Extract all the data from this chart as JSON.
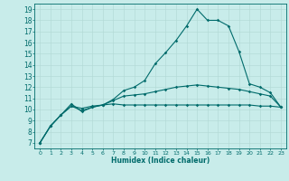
{
  "xlabel": "Humidex (Indice chaleur)",
  "bg_color": "#c8ecea",
  "grid_color": "#b0d8d4",
  "line_color": "#006b6b",
  "xlim": [
    -0.5,
    23.5
  ],
  "ylim": [
    6.5,
    19.5
  ],
  "xticks": [
    0,
    1,
    2,
    3,
    4,
    5,
    6,
    7,
    8,
    9,
    10,
    11,
    12,
    13,
    14,
    15,
    16,
    17,
    18,
    19,
    20,
    21,
    22,
    23
  ],
  "yticks": [
    7,
    8,
    9,
    10,
    11,
    12,
    13,
    14,
    15,
    16,
    17,
    18,
    19
  ],
  "line1_x": [
    0,
    1,
    2,
    3,
    4,
    5,
    6,
    7,
    8,
    9,
    10,
    11,
    12,
    13,
    14,
    15,
    16,
    17,
    18,
    19,
    20,
    21,
    22,
    23
  ],
  "line1_y": [
    7.0,
    8.5,
    9.5,
    10.3,
    10.1,
    10.3,
    10.4,
    10.5,
    10.4,
    10.4,
    10.4,
    10.4,
    10.4,
    10.4,
    10.4,
    10.4,
    10.4,
    10.4,
    10.4,
    10.4,
    10.4,
    10.3,
    10.3,
    10.2
  ],
  "line2_x": [
    0,
    1,
    2,
    3,
    4,
    5,
    6,
    7,
    8,
    9,
    10,
    11,
    12,
    13,
    14,
    15,
    16,
    17,
    18,
    19,
    20,
    21,
    22,
    23
  ],
  "line2_y": [
    7.0,
    8.5,
    9.5,
    10.3,
    9.9,
    10.2,
    10.4,
    10.8,
    11.2,
    11.3,
    11.4,
    11.6,
    11.8,
    12.0,
    12.1,
    12.2,
    12.1,
    12.0,
    11.9,
    11.8,
    11.6,
    11.4,
    11.2,
    10.2
  ],
  "line3_x": [
    0,
    1,
    2,
    3,
    4,
    5,
    6,
    7,
    8,
    9,
    10,
    11,
    12,
    13,
    14,
    15,
    16,
    17,
    18,
    19,
    20,
    21,
    22,
    23
  ],
  "line3_y": [
    7.0,
    8.5,
    9.5,
    10.5,
    9.8,
    10.2,
    10.4,
    10.9,
    11.7,
    12.0,
    12.6,
    14.1,
    15.1,
    16.2,
    17.5,
    19.0,
    18.0,
    18.0,
    17.5,
    15.2,
    12.3,
    12.0,
    11.5,
    10.2
  ]
}
